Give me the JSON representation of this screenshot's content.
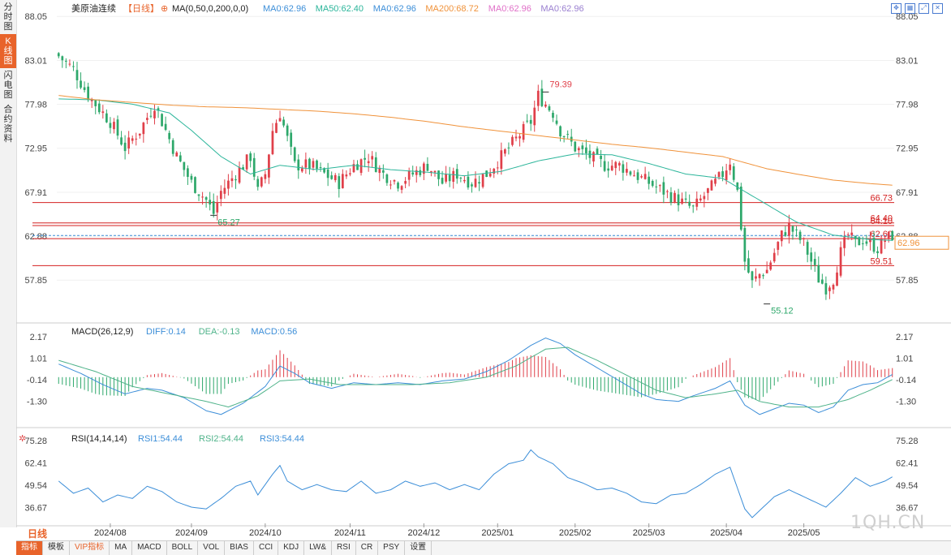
{
  "colors": {
    "up": "#e0404a",
    "down": "#2ea86b",
    "ma50": "#2bb59a",
    "ma200": "#f0923a",
    "macd_diff": "#3c8ed8",
    "macd_dea": "#4fb38a",
    "rsi": "#3c8ed8",
    "hline": "#d42020",
    "current": "#f0923a"
  },
  "sidebar": {
    "tabs": [
      {
        "label": "分时图"
      },
      {
        "label": "K线图"
      },
      {
        "label": "闪电图"
      },
      {
        "label": "合约资料"
      }
    ]
  },
  "top_icons": [
    "fullscreen-icon",
    "grid-icon",
    "expand-icon",
    "close-icon"
  ],
  "price_header": {
    "name": "美原油连续",
    "period_tag": "【日线】",
    "ma_params": "MA(0,50,0,200,0,0)",
    "ma_items": [
      {
        "text": "MA0:62.96",
        "color": "#3c8ed8"
      },
      {
        "text": "MA50:62.40",
        "color": "#2bb59a"
      },
      {
        "text": "MA0:62.96",
        "color": "#3c8ed8"
      },
      {
        "text": "MA200:68.72",
        "color": "#f0923a"
      },
      {
        "text": "MA0:62.96",
        "color": "#e070c8"
      },
      {
        "text": "MA0:62.96",
        "color": "#9a7fd0"
      }
    ]
  },
  "macd_header": {
    "title": "MACD(26,12,9)",
    "items": [
      {
        "text": "DIFF:0.14",
        "color": "#3c8ed8"
      },
      {
        "text": "DEA:-0.13",
        "color": "#4fb38a"
      },
      {
        "text": "MACD:0.56",
        "color": "#3c8ed8"
      }
    ]
  },
  "rsi_header": {
    "title": "RSI(14,14,14)",
    "items": [
      {
        "text": "RSI1:54.44",
        "color": "#3c8ed8"
      },
      {
        "text": "RSI2:54.44",
        "color": "#4fb38a"
      },
      {
        "text": "RSI3:54.44",
        "color": "#3c8ed8"
      }
    ]
  },
  "period_label": "日线",
  "toolbar": [
    "指标",
    "模板",
    "VIP指标",
    "MA",
    "MACD",
    "BOLL",
    "VOL",
    "BIAS",
    "CCI",
    "KDJ",
    "LW&",
    "RSI",
    "CR",
    "PSY",
    "设置"
  ],
  "watermark": "1QH.CN",
  "chart_data": {
    "type": "candlestick",
    "price_axis": {
      "ticks": [
        "88.05",
        "83.01",
        "77.98",
        "72.95",
        "67.91",
        "62.88",
        "57.85"
      ],
      "range": [
        53.5,
        89
      ]
    },
    "macd_axis": {
      "ticks": [
        "2.17",
        "1.01",
        "-0.14",
        "-1.30"
      ],
      "range": [
        -2.4,
        2.6
      ]
    },
    "rsi_axis": {
      "ticks": [
        "75.28",
        "62.41",
        "49.54",
        "36.67"
      ],
      "range": [
        30,
        80
      ]
    },
    "x_labels": [
      {
        "label": "2024/08",
        "i": 14
      },
      {
        "label": "2024/09",
        "i": 36
      },
      {
        "label": "2024/10",
        "i": 56
      },
      {
        "label": "2024/11",
        "i": 79
      },
      {
        "label": "2024/12",
        "i": 99
      },
      {
        "label": "2025/01",
        "i": 119
      },
      {
        "label": "2025/02",
        "i": 140
      },
      {
        "label": "2025/03",
        "i": 160
      },
      {
        "label": "2025/04",
        "i": 181
      },
      {
        "label": "2025/05",
        "i": 202
      }
    ],
    "horizontal_lines": [
      {
        "value": 66.73,
        "label": "66.73"
      },
      {
        "value": 64.4,
        "label": "64.40"
      },
      {
        "value": 64.1,
        "label": "64.10"
      },
      {
        "value": 62.6,
        "label": "62.60"
      },
      {
        "value": 59.51,
        "label": "59.51"
      }
    ],
    "current_price": {
      "value": 62.96,
      "label": "62.96"
    },
    "annotations": [
      {
        "label": "65.27",
        "i": 42,
        "value": 65.27
      },
      {
        "label": "79.39",
        "i": 132,
        "value": 79.39
      },
      {
        "label": "55.12",
        "i": 192,
        "value": 55.12
      }
    ],
    "close_keypoints": [
      [
        0,
        83.5
      ],
      [
        4,
        82
      ],
      [
        8,
        79
      ],
      [
        14,
        76
      ],
      [
        18,
        73
      ],
      [
        22,
        75
      ],
      [
        26,
        78
      ],
      [
        28,
        76
      ],
      [
        32,
        72
      ],
      [
        36,
        69
      ],
      [
        40,
        67
      ],
      [
        42,
        65.5
      ],
      [
        44,
        68
      ],
      [
        48,
        70
      ],
      [
        52,
        72
      ],
      [
        54,
        68
      ],
      [
        56,
        70
      ],
      [
        58,
        75
      ],
      [
        60,
        77
      ],
      [
        62,
        74
      ],
      [
        64,
        71
      ],
      [
        68,
        71
      ],
      [
        72,
        70
      ],
      [
        76,
        69
      ],
      [
        80,
        71
      ],
      [
        84,
        72
      ],
      [
        88,
        70
      ],
      [
        92,
        69
      ],
      [
        96,
        70
      ],
      [
        100,
        71
      ],
      [
        104,
        69
      ],
      [
        108,
        70
      ],
      [
        112,
        69
      ],
      [
        116,
        70
      ],
      [
        120,
        72
      ],
      [
        124,
        74
      ],
      [
        128,
        76
      ],
      [
        130,
        79
      ],
      [
        134,
        77
      ],
      [
        136,
        75
      ],
      [
        140,
        73
      ],
      [
        144,
        72
      ],
      [
        148,
        71
      ],
      [
        152,
        71
      ],
      [
        156,
        70
      ],
      [
        160,
        69
      ],
      [
        164,
        68
      ],
      [
        168,
        67
      ],
      [
        172,
        66
      ],
      [
        176,
        68
      ],
      [
        180,
        70
      ],
      [
        182,
        71.5
      ],
      [
        184,
        68
      ],
      [
        186,
        60
      ],
      [
        188,
        57.5
      ],
      [
        190,
        58.5
      ],
      [
        192,
        59
      ],
      [
        194,
        61
      ],
      [
        196,
        63
      ],
      [
        198,
        64
      ],
      [
        200,
        63
      ],
      [
        202,
        62
      ],
      [
        204,
        60
      ],
      [
        206,
        58
      ],
      [
        208,
        57
      ],
      [
        210,
        58
      ],
      [
        212,
        61
      ],
      [
        214,
        63
      ],
      [
        216,
        62
      ],
      [
        218,
        62.5
      ],
      [
        220,
        62
      ],
      [
        222,
        61.5
      ],
      [
        224,
        62.5
      ],
      [
        226,
        62.96
      ]
    ],
    "ma50_keypoints": [
      [
        0,
        78.6
      ],
      [
        10,
        78.5
      ],
      [
        20,
        78
      ],
      [
        30,
        77
      ],
      [
        36,
        75
      ],
      [
        44,
        72
      ],
      [
        52,
        70
      ],
      [
        60,
        71
      ],
      [
        70,
        70.5
      ],
      [
        80,
        71
      ],
      [
        90,
        70.5
      ],
      [
        100,
        70.2
      ],
      [
        110,
        69.8
      ],
      [
        120,
        70.3
      ],
      [
        130,
        71.5
      ],
      [
        140,
        72.3
      ],
      [
        150,
        72.2
      ],
      [
        160,
        71.2
      ],
      [
        170,
        70
      ],
      [
        180,
        69.5
      ],
      [
        186,
        68
      ],
      [
        192,
        66.5
      ],
      [
        200,
        64.5
      ],
      [
        210,
        63
      ],
      [
        220,
        62.5
      ],
      [
        226,
        62.4
      ]
    ],
    "ma200_keypoints": [
      [
        0,
        79
      ],
      [
        10,
        78.5
      ],
      [
        20,
        78.2
      ],
      [
        30,
        77.9
      ],
      [
        40,
        77.7
      ],
      [
        50,
        77.6
      ],
      [
        60,
        77.4
      ],
      [
        70,
        77.2
      ],
      [
        80,
        76.9
      ],
      [
        90,
        76.5
      ],
      [
        100,
        76
      ],
      [
        110,
        75.4
      ],
      [
        120,
        74.9
      ],
      [
        130,
        74.4
      ],
      [
        140,
        73.9
      ],
      [
        150,
        73.4
      ],
      [
        160,
        73
      ],
      [
        170,
        72.5
      ],
      [
        180,
        72
      ],
      [
        186,
        71.3
      ],
      [
        192,
        70.6
      ],
      [
        200,
        70
      ],
      [
        210,
        69.3
      ],
      [
        220,
        68.9
      ],
      [
        226,
        68.72
      ]
    ],
    "macd_diff_keypoints": [
      [
        0,
        0.7
      ],
      [
        6,
        0.2
      ],
      [
        12,
        -0.4
      ],
      [
        18,
        -0.9
      ],
      [
        24,
        -0.6
      ],
      [
        28,
        -0.7
      ],
      [
        34,
        -1.1
      ],
      [
        40,
        -1.8
      ],
      [
        44,
        -2.0
      ],
      [
        50,
        -1.4
      ],
      [
        56,
        -0.5
      ],
      [
        60,
        0.6
      ],
      [
        64,
        0.2
      ],
      [
        68,
        -0.3
      ],
      [
        74,
        -0.6
      ],
      [
        80,
        -0.3
      ],
      [
        86,
        -0.4
      ],
      [
        92,
        -0.3
      ],
      [
        98,
        -0.4
      ],
      [
        104,
        -0.2
      ],
      [
        110,
        -0.1
      ],
      [
        116,
        0.3
      ],
      [
        122,
        0.9
      ],
      [
        128,
        1.7
      ],
      [
        132,
        2.1
      ],
      [
        136,
        1.8
      ],
      [
        140,
        1.2
      ],
      [
        146,
        0.5
      ],
      [
        152,
        -0.2
      ],
      [
        158,
        -0.9
      ],
      [
        162,
        -1.2
      ],
      [
        168,
        -1.3
      ],
      [
        172,
        -1.0
      ],
      [
        178,
        -0.6
      ],
      [
        182,
        -0.2
      ],
      [
        186,
        -1.5
      ],
      [
        190,
        -2.0
      ],
      [
        194,
        -1.7
      ],
      [
        198,
        -1.4
      ],
      [
        202,
        -1.5
      ],
      [
        206,
        -1.9
      ],
      [
        210,
        -1.6
      ],
      [
        214,
        -0.7
      ],
      [
        218,
        -0.4
      ],
      [
        222,
        -0.3
      ],
      [
        226,
        0.14
      ]
    ],
    "macd_dea_keypoints": [
      [
        0,
        0.9
      ],
      [
        10,
        0.3
      ],
      [
        20,
        -0.5
      ],
      [
        30,
        -0.9
      ],
      [
        40,
        -1.3
      ],
      [
        46,
        -1.6
      ],
      [
        54,
        -1.0
      ],
      [
        60,
        -0.2
      ],
      [
        68,
        -0.1
      ],
      [
        76,
        -0.4
      ],
      [
        86,
        -0.4
      ],
      [
        96,
        -0.4
      ],
      [
        106,
        -0.3
      ],
      [
        116,
        0.0
      ],
      [
        124,
        0.6
      ],
      [
        132,
        1.5
      ],
      [
        138,
        1.6
      ],
      [
        146,
        0.9
      ],
      [
        154,
        0.1
      ],
      [
        162,
        -0.7
      ],
      [
        170,
        -1.1
      ],
      [
        178,
        -0.9
      ],
      [
        184,
        -0.7
      ],
      [
        190,
        -1.3
      ],
      [
        198,
        -1.6
      ],
      [
        206,
        -1.6
      ],
      [
        214,
        -1.2
      ],
      [
        220,
        -0.7
      ],
      [
        226,
        -0.13
      ]
    ],
    "rsi_keypoints": [
      [
        0,
        52
      ],
      [
        4,
        45
      ],
      [
        8,
        48
      ],
      [
        12,
        40
      ],
      [
        16,
        44
      ],
      [
        20,
        42
      ],
      [
        24,
        49
      ],
      [
        28,
        46
      ],
      [
        32,
        40
      ],
      [
        36,
        37
      ],
      [
        40,
        36
      ],
      [
        44,
        42
      ],
      [
        48,
        49
      ],
      [
        52,
        52
      ],
      [
        54,
        44
      ],
      [
        58,
        56
      ],
      [
        60,
        61
      ],
      [
        62,
        52
      ],
      [
        66,
        47
      ],
      [
        70,
        50
      ],
      [
        74,
        47
      ],
      [
        78,
        46
      ],
      [
        82,
        52
      ],
      [
        86,
        45
      ],
      [
        90,
        47
      ],
      [
        94,
        52
      ],
      [
        98,
        49
      ],
      [
        102,
        51
      ],
      [
        106,
        47
      ],
      [
        110,
        50
      ],
      [
        114,
        47
      ],
      [
        118,
        56
      ],
      [
        122,
        62
      ],
      [
        126,
        64
      ],
      [
        128,
        70
      ],
      [
        130,
        66
      ],
      [
        134,
        62
      ],
      [
        138,
        54
      ],
      [
        142,
        51
      ],
      [
        146,
        47
      ],
      [
        150,
        48
      ],
      [
        154,
        45
      ],
      [
        158,
        40
      ],
      [
        162,
        39
      ],
      [
        166,
        44
      ],
      [
        170,
        45
      ],
      [
        174,
        50
      ],
      [
        178,
        56
      ],
      [
        182,
        60
      ],
      [
        184,
        48
      ],
      [
        186,
        36
      ],
      [
        188,
        31
      ],
      [
        190,
        35
      ],
      [
        194,
        43
      ],
      [
        198,
        47
      ],
      [
        202,
        43
      ],
      [
        206,
        39
      ],
      [
        208,
        37
      ],
      [
        212,
        45
      ],
      [
        216,
        54
      ],
      [
        220,
        49
      ],
      [
        224,
        52
      ],
      [
        226,
        54.44
      ]
    ]
  }
}
